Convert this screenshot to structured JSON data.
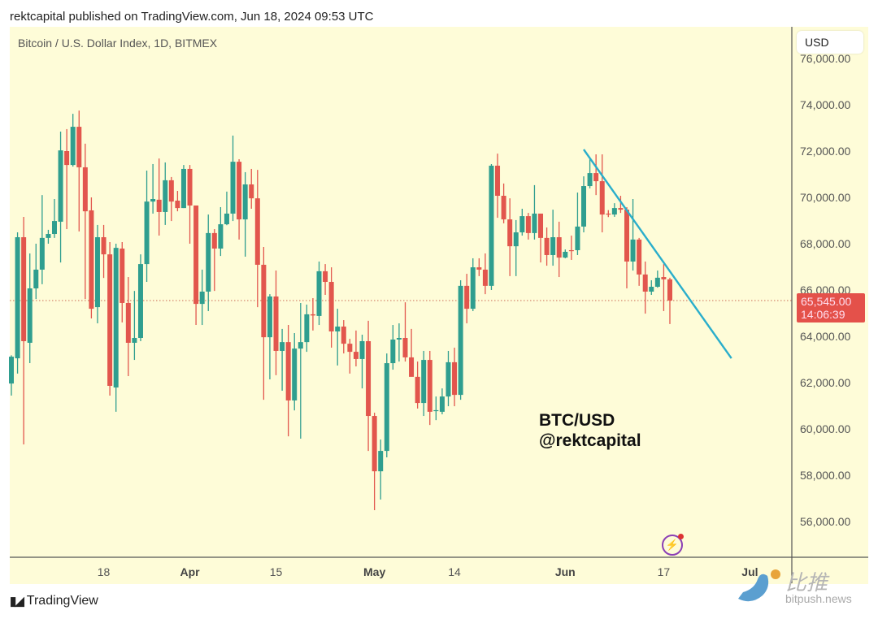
{
  "header": {
    "published": "rektcapital published on TradingView.com, Jun 18, 2024 09:53 UTC",
    "symbol": "Bitcoin / U.S. Dollar Index, 1D, BITMEX",
    "currency_button": "USD"
  },
  "footer": {
    "brand": "TradingView",
    "brand_mark": "17"
  },
  "watermark": {
    "cn": "比推",
    "url": "bitpush.news"
  },
  "annotation": {
    "line1": "BTC/USD",
    "line2": "@rektcapital"
  },
  "last_price": {
    "price": "65,545.00",
    "countdown": "14:06:39",
    "value": 65545
  },
  "colors": {
    "up": "#2f9e8f",
    "down": "#e2564d",
    "trendline": "#2aaecb",
    "background": "#fefcd8",
    "last_price": "#e4514a"
  },
  "icons": {
    "alert": "lightning-bolt-icon",
    "brand": "tradingview-logo-icon"
  },
  "chart_data": {
    "type": "candlestick",
    "title": "Bitcoin / U.S. Dollar Index, 1D, BITMEX",
    "y_ticks": [
      "76,000.00",
      "74,000.00",
      "72,000.00",
      "70,000.00",
      "68,000.00",
      "66,000.00",
      "64,000.00",
      "62,000.00",
      "60,000.00",
      "58,000.00",
      "56,000.00"
    ],
    "y_tick_values": [
      76000,
      74000,
      72000,
      70000,
      68000,
      66000,
      64000,
      62000,
      60000,
      58000,
      56000
    ],
    "x_ticks": [
      {
        "label": "18",
        "date": "2024-03-18",
        "month": false
      },
      {
        "label": "Apr",
        "date": "2024-04-01",
        "month": true
      },
      {
        "label": "15",
        "date": "2024-04-15",
        "month": false
      },
      {
        "label": "May",
        "date": "2024-05-01",
        "month": true
      },
      {
        "label": "14",
        "date": "2024-05-14",
        "month": false
      },
      {
        "label": "Jun",
        "date": "2024-06-01",
        "month": true
      },
      {
        "label": "17",
        "date": "2024-06-17",
        "month": false
      },
      {
        "label": "Jul",
        "date": "2024-07-01",
        "month": true
      }
    ],
    "ylim": [
      54900,
      77000
    ],
    "xlim": [
      "2024-03-03",
      "2024-07-08"
    ],
    "grid": false,
    "columns": [
      "date",
      "open",
      "high",
      "low",
      "close"
    ],
    "candles": [
      [
        "2024-03-03",
        61960,
        63180,
        61440,
        63120
      ],
      [
        "2024-03-04",
        63050,
        68490,
        62390,
        68280
      ],
      [
        "2024-03-05",
        68280,
        69160,
        59330,
        63790
      ],
      [
        "2024-03-06",
        63720,
        67580,
        62840,
        66070
      ],
      [
        "2024-03-07",
        66070,
        68000,
        65610,
        66880
      ],
      [
        "2024-03-08",
        66880,
        70100,
        66250,
        68250
      ],
      [
        "2024-03-09",
        68250,
        68600,
        68000,
        68420
      ],
      [
        "2024-03-10",
        68420,
        69930,
        68250,
        68980
      ],
      [
        "2024-03-11",
        68950,
        72840,
        67190,
        72030
      ],
      [
        "2024-03-12",
        72000,
        72950,
        68630,
        71400
      ],
      [
        "2024-03-13",
        71400,
        73610,
        71330,
        73050
      ],
      [
        "2024-03-14",
        73050,
        73750,
        68530,
        71300
      ],
      [
        "2024-03-15",
        71300,
        72320,
        65610,
        69400
      ],
      [
        "2024-03-16",
        69440,
        70000,
        64770,
        65190
      ],
      [
        "2024-03-17",
        65260,
        68810,
        64560,
        68280
      ],
      [
        "2024-03-18",
        68280,
        68810,
        66520,
        67540
      ],
      [
        "2024-03-19",
        67540,
        68070,
        61440,
        61860
      ],
      [
        "2024-03-20",
        61790,
        68000,
        60740,
        67820
      ],
      [
        "2024-03-21",
        67790,
        68070,
        64600,
        65440
      ],
      [
        "2024-03-22",
        65440,
        66560,
        62280,
        63720
      ],
      [
        "2024-03-23",
        63720,
        65960,
        62980,
        63930
      ],
      [
        "2024-03-24",
        63930,
        67540,
        63790,
        67120
      ],
      [
        "2024-03-25",
        67120,
        71160,
        66350,
        69820
      ],
      [
        "2024-03-26",
        69820,
        71440,
        69300,
        69930
      ],
      [
        "2024-03-27",
        69900,
        71680,
        68350,
        69370
      ],
      [
        "2024-03-28",
        69370,
        71510,
        68810,
        70740
      ],
      [
        "2024-03-29",
        70740,
        70880,
        68980,
        69820
      ],
      [
        "2024-03-30",
        69860,
        70280,
        69400,
        69540
      ],
      [
        "2024-03-31",
        69540,
        71400,
        69540,
        71230
      ],
      [
        "2024-04-01",
        71230,
        71400,
        68000,
        69650
      ],
      [
        "2024-04-02",
        69650,
        69650,
        64490,
        65400
      ],
      [
        "2024-04-03",
        65400,
        66880,
        64490,
        65930
      ],
      [
        "2024-04-04",
        65930,
        69260,
        65090,
        68460
      ],
      [
        "2024-04-05",
        68460,
        68630,
        65960,
        67790
      ],
      [
        "2024-04-06",
        67790,
        69580,
        67470,
        68840
      ],
      [
        "2024-04-07",
        68840,
        70250,
        68800,
        69300
      ],
      [
        "2024-04-08",
        69300,
        72670,
        68980,
        71540
      ],
      [
        "2024-04-09",
        71540,
        71650,
        68180,
        69050
      ],
      [
        "2024-04-10",
        69050,
        71090,
        67440,
        70560
      ],
      [
        "2024-04-11",
        70560,
        71230,
        69510,
        69960
      ],
      [
        "2024-04-12",
        69960,
        71190,
        65260,
        67090
      ],
      [
        "2024-04-13",
        67090,
        67860,
        61260,
        63960
      ],
      [
        "2024-04-14",
        63960,
        65820,
        62140,
        65720
      ],
      [
        "2024-04-15",
        65720,
        66840,
        62320,
        63370
      ],
      [
        "2024-04-16",
        63370,
        64320,
        61650,
        63750
      ],
      [
        "2024-04-17",
        63750,
        64490,
        59680,
        61230
      ],
      [
        "2024-04-18",
        61230,
        64140,
        60800,
        63470
      ],
      [
        "2024-04-19",
        63470,
        65440,
        59580,
        63750
      ],
      [
        "2024-04-20",
        63750,
        65370,
        63330,
        64950
      ],
      [
        "2024-04-21",
        64950,
        65650,
        64250,
        64900
      ],
      [
        "2024-04-22",
        64880,
        67230,
        64490,
        66810
      ],
      [
        "2024-04-23",
        66810,
        67120,
        65790,
        66350
      ],
      [
        "2024-04-24",
        66350,
        66980,
        63510,
        64210
      ],
      [
        "2024-04-25",
        64210,
        65190,
        62740,
        64420
      ],
      [
        "2024-04-26",
        64420,
        64700,
        63260,
        63680
      ],
      [
        "2024-04-27",
        63680,
        63890,
        62390,
        63330
      ],
      [
        "2024-04-28",
        63330,
        64250,
        62700,
        63020
      ],
      [
        "2024-04-29",
        63020,
        64070,
        61750,
        63790
      ],
      [
        "2024-04-30",
        63790,
        64670,
        59050,
        60560
      ],
      [
        "2024-05-01",
        60560,
        60700,
        56490,
        58170
      ],
      [
        "2024-05-02",
        58170,
        59540,
        56950,
        59050
      ],
      [
        "2024-05-03",
        59050,
        63260,
        58770,
        62840
      ],
      [
        "2024-05-04",
        62840,
        64490,
        62560,
        63860
      ],
      [
        "2024-05-05",
        63860,
        64560,
        62910,
        63930
      ],
      [
        "2024-05-06",
        63930,
        65470,
        62910,
        63090
      ],
      [
        "2024-05-07",
        63090,
        64320,
        62320,
        62250
      ],
      [
        "2024-05-08",
        62250,
        62910,
        60880,
        61120
      ],
      [
        "2024-05-09",
        61120,
        63370,
        60560,
        62980
      ],
      [
        "2024-05-10",
        62980,
        63370,
        60170,
        60740
      ],
      [
        "2024-05-11",
        60770,
        61400,
        60380,
        60810
      ],
      [
        "2024-05-12",
        60740,
        61750,
        60630,
        61400
      ],
      [
        "2024-05-13",
        61400,
        63370,
        60980,
        62880
      ],
      [
        "2024-05-14",
        62880,
        63510,
        60980,
        61470
      ],
      [
        "2024-05-15",
        61470,
        66420,
        61260,
        66180
      ],
      [
        "2024-05-16",
        66180,
        66700,
        64560,
        65190
      ],
      [
        "2024-05-17",
        65190,
        67370,
        65090,
        66980
      ],
      [
        "2024-05-18",
        66980,
        67370,
        66600,
        66880
      ],
      [
        "2024-05-19",
        66880,
        67580,
        65820,
        66180
      ],
      [
        "2024-05-20",
        66180,
        71440,
        66000,
        71370
      ],
      [
        "2024-05-21",
        71370,
        71890,
        69120,
        70070
      ],
      [
        "2024-05-22",
        70070,
        70600,
        68880,
        69050
      ],
      [
        "2024-05-23",
        69050,
        69960,
        66600,
        67890
      ],
      [
        "2024-05-24",
        67890,
        69020,
        66600,
        68490
      ],
      [
        "2024-05-25",
        68490,
        69510,
        68350,
        69190
      ],
      [
        "2024-05-26",
        69190,
        69330,
        68180,
        68460
      ],
      [
        "2024-05-27",
        68460,
        70530,
        68180,
        69300
      ],
      [
        "2024-05-28",
        69300,
        69300,
        67190,
        68250
      ],
      [
        "2024-05-29",
        68250,
        68700,
        67050,
        67510
      ],
      [
        "2024-05-30",
        67510,
        69470,
        67050,
        68280
      ],
      [
        "2024-05-31",
        68280,
        68950,
        66560,
        67400
      ],
      [
        "2024-06-01",
        67400,
        67750,
        67370,
        67650
      ],
      [
        "2024-06-02",
        67720,
        68350,
        67300,
        67700
      ],
      [
        "2024-06-03",
        67720,
        70210,
        67510,
        68740
      ],
      [
        "2024-06-04",
        68740,
        70910,
        68490,
        70490
      ],
      [
        "2024-06-05",
        70490,
        71650,
        70390,
        71050
      ],
      [
        "2024-06-06",
        71050,
        71860,
        70100,
        70700
      ],
      [
        "2024-06-07",
        70700,
        71860,
        68490,
        69260
      ],
      [
        "2024-06-08",
        69300,
        69450,
        69150,
        69280
      ],
      [
        "2024-06-09",
        69260,
        69750,
        69160,
        69540
      ],
      [
        "2024-06-10",
        69540,
        70070,
        69330,
        69470
      ],
      [
        "2024-06-11",
        69470,
        69580,
        66070,
        67230
      ],
      [
        "2024-06-12",
        67230,
        69930,
        66840,
        68180
      ],
      [
        "2024-06-13",
        68180,
        68250,
        66180,
        66670
      ],
      [
        "2024-06-14",
        66670,
        67230,
        64980,
        65930
      ],
      [
        "2024-06-15",
        65930,
        66420,
        65790,
        66140
      ],
      [
        "2024-06-16",
        66140,
        66840,
        66100,
        66530
      ],
      [
        "2024-06-17",
        66560,
        67120,
        65090,
        66460
      ],
      [
        "2024-06-18",
        66460,
        66530,
        64530,
        65545
      ]
    ],
    "trendline": [
      {
        "date": "2024-06-04",
        "price": 72070
      },
      {
        "date": "2024-06-28",
        "price": 63050
      }
    ]
  }
}
